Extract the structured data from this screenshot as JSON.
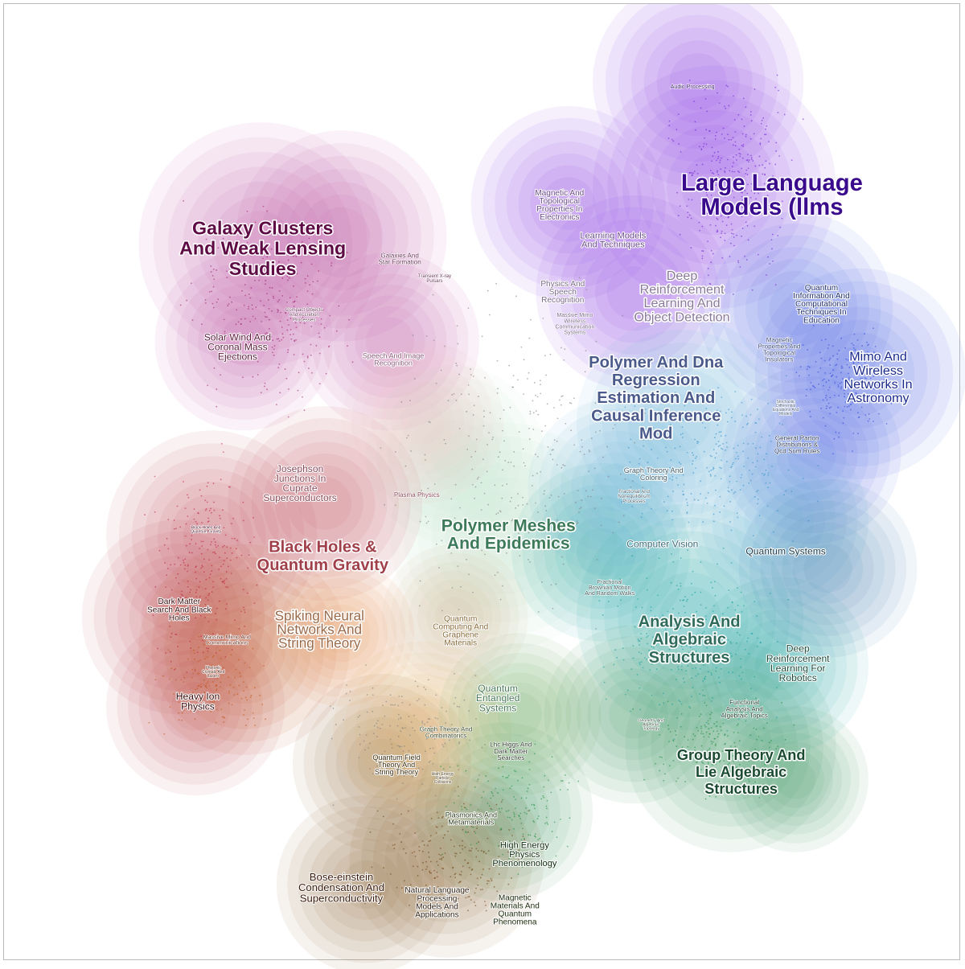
{
  "clusters": [
    {
      "name": "Galaxy Clusters And Weak Lensing Studies",
      "color": "#c0358c",
      "ink": "#5e0b45"
    },
    {
      "name": "Large Language Models (llms",
      "color": "#8a3be0",
      "ink": "#3a0a8c"
    },
    {
      "name": "Mimo And Wireless Networks In Astronomy",
      "color": "#3f5ee8",
      "ink": "#1a2a8c"
    },
    {
      "name": "Polymer Meshes And Epidemics",
      "color": "#7fb6a0",
      "ink": "#3c7a5a"
    },
    {
      "name": "Black Holes & Quantum Gravity",
      "color": "#d84a5a",
      "ink": "#a0404a"
    },
    {
      "name": "Analysis And Algebraic Structures",
      "color": "#1ea08a",
      "ink": "#2f6a5a"
    },
    {
      "name": "Group Theory And Lie Algebraic Structures",
      "color": "#2f9a60",
      "ink": "#1a4a30"
    },
    {
      "name": "Bose-einstein Condensation And Superconductivity",
      "color": "#8a5a2a",
      "ink": "#3a1a0a"
    },
    {
      "name": "Polymer And Dna Regression Estimation And Causal Inference Mod",
      "color": "#5aa8d8",
      "ink": "#4a5a8a"
    }
  ],
  "labels": [
    {
      "text": "Galaxy Clusters And Weak Lensing Studies",
      "lines": [
        "Galaxy Clusters",
        "And Weak Lensing",
        "Studies"
      ],
      "size": "large",
      "color": "#5e0b45"
    },
    {
      "text": "Large Language Models (llms",
      "lines": [
        "Large Language",
        "Models (llms"
      ],
      "size": "xlarge",
      "color": "#3a0a8c"
    },
    {
      "text": "Audio Processing",
      "lines": [
        "Audio Processing"
      ],
      "size": "tiny",
      "color": "#3a1a6a"
    },
    {
      "text": "Magnetic And Topological Properties In Electronics",
      "lines": [
        "Magnetic And",
        "Topological",
        "Properties In",
        "Electronics"
      ],
      "size": "small",
      "color": "#6a4a8a"
    },
    {
      "text": "Learning Models And Techniques",
      "lines": [
        "Learning Models",
        "And Techniques"
      ],
      "size": "small",
      "color": "#6a4a8a"
    },
    {
      "text": "Physics And Speech Recognition",
      "lines": [
        "Physics And",
        "Speech",
        "Recognition"
      ],
      "size": "small",
      "color": "#7a6a8a"
    },
    {
      "text": "Massive Mimo Wireless Communication Systems",
      "lines": [
        "Massive Mimo",
        "Wireless",
        "Communication",
        "Systems"
      ],
      "size": "tiny",
      "color": "#7a6a8a"
    },
    {
      "text": "Deep Reinforcement Learning And Object Detection",
      "lines": [
        "Deep",
        "Reinforcement",
        "Learning And",
        "Object Detection"
      ],
      "size": "medium",
      "color": "#8a7a9a"
    },
    {
      "text": "Quantum Information And Computational Techniques In Education",
      "lines": [
        "Quantum",
        "Information And",
        "Computational",
        "Techniques In",
        "Education"
      ],
      "size": "small",
      "color": "#1a2a6a"
    },
    {
      "text": "Mimo And Wireless Networks In Astronomy",
      "lines": [
        "Mimo And",
        "Wireless",
        "Networks In",
        "Astronomy"
      ],
      "size": "medium-bold",
      "color": "#1a2a8c"
    },
    {
      "text": "Magnetic Properties And Topological Insulators",
      "lines": [
        "Magnetic",
        "Properties And",
        "Topological",
        "Insulators"
      ],
      "size": "tiny",
      "color": "#3a4a7a"
    },
    {
      "text": "Polymer And Dna Regression Estimation And Causal Inference Mod",
      "lines": [
        "Polymer And Dna",
        "Regression",
        "Estimation And",
        "Causal Inference",
        "Mod"
      ],
      "size": "large",
      "color": "#4a5a8a"
    },
    {
      "text": "Stochastic Differential Equations And Models",
      "lines": [
        "Stochastic",
        "Differential",
        "Equations And",
        "Models"
      ],
      "size": "micro",
      "color": "#4a5a7a"
    },
    {
      "text": "General Parton Distributions & Qcd Sum Rules",
      "lines": [
        "General Parton",
        "Distributions &",
        "Qcd Sum Rules"
      ],
      "size": "tiny",
      "color": "#2a3a5a"
    },
    {
      "text": "Galaxies And Star Formation",
      "lines": [
        "Galaxies And",
        "Star Formation"
      ],
      "size": "tiny",
      "color": "#6a3a5a"
    },
    {
      "text": "Transient X-ray Pulsars",
      "lines": [
        "Transient X-ray",
        "Pulsars"
      ],
      "size": "micro",
      "color": "#6a3a5a"
    },
    {
      "text": "Compact Objects And Accretion Processes",
      "lines": [
        "Compact Objects",
        "And Accretion",
        "Processes"
      ],
      "size": "micro",
      "color": "#6a3a5a"
    },
    {
      "text": "Solar Wind And Coronal Mass Ejections",
      "lines": [
        "Solar Wind And",
        "Coronal Mass",
        "Ejections"
      ],
      "size": "small",
      "color": "#5a1a3a"
    },
    {
      "text": "Speech And Image Recognition",
      "lines": [
        "Speech And Image",
        "Recognition"
      ],
      "size": "tiny",
      "color": "#8a5a7a"
    },
    {
      "text": "Josephson Junctions In Cuprate Superconductors",
      "lines": [
        "Josephson",
        "Junctions In",
        "Cuprate",
        "Superconductors"
      ],
      "size": "small",
      "color": "#8a4a5a"
    },
    {
      "text": "Plasma Physics",
      "lines": [
        "Plasma Physics"
      ],
      "size": "tiny",
      "color": "#8a4a5a"
    },
    {
      "text": "Black Holes And Quantum Gravity",
      "lines": [
        "Black Holes And",
        "Quantum Gravity"
      ],
      "size": "micro",
      "color": "#4a0a1a"
    },
    {
      "text": "Black Holes & Quantum Gravity",
      "lines": [
        "Black Holes &",
        "Quantum Gravity"
      ],
      "size": "large",
      "color": "#a0404a"
    },
    {
      "text": "Polymer Meshes And Epidemics",
      "lines": [
        "Polymer Meshes",
        "And Epidemics"
      ],
      "size": "large",
      "color": "#3c7a5a"
    },
    {
      "text": "Dark Matter Search And Black Holes",
      "lines": [
        "Dark Matter",
        "Search And Black",
        "Holes"
      ],
      "size": "tiny",
      "color": "#3a0a0a"
    },
    {
      "text": "Massive Mimo And Communications",
      "lines": [
        "Massive Mimo And",
        "Communications"
      ],
      "size": "micro",
      "color": "#6a2a1a"
    },
    {
      "text": "Photonic Crystals And Lasers",
      "lines": [
        "Photonic",
        "Crystals And",
        "Lasers"
      ],
      "size": "micro",
      "color": "#4a1a0a"
    },
    {
      "text": "Heavy Ion Physics",
      "lines": [
        "Heavy Ion",
        "Physics"
      ],
      "size": "small",
      "color": "#3a0a0a"
    },
    {
      "text": "Spiking Neural Networks And String Theory",
      "lines": [
        "Spiking Neural",
        "Networks And",
        "String Theory"
      ],
      "size": "medium",
      "color": "#9a6a4a"
    },
    {
      "text": "Quantum Computing And Graphene Materials",
      "lines": [
        "Quantum",
        "Computing And",
        "Graphene",
        "Materials"
      ],
      "size": "small",
      "color": "#8a6a3a"
    },
    {
      "text": "Graph Theory And Coloring",
      "lines": [
        "Graph Theory And",
        "Coloring"
      ],
      "size": "tiny",
      "color": "#3a5a6a"
    },
    {
      "text": "Fractional And Nonequilibrium Processes",
      "lines": [
        "Fractional And",
        "Nonequilibrium",
        "Processes"
      ],
      "size": "micro",
      "color": "#3a5a6a"
    },
    {
      "text": "Computer Vision",
      "lines": [
        "Computer Vision"
      ],
      "size": "small",
      "color": "#3a6a7a"
    },
    {
      "text": "Quantum Systems",
      "lines": [
        "Quantum Systems"
      ],
      "size": "small",
      "color": "#1a3a4a"
    },
    {
      "text": "Fractional Brownian Motion And Random Walks",
      "lines": [
        "Fractional",
        "Brownian Motion",
        "And Random Walks"
      ],
      "size": "micro",
      "color": "#3a5a5a"
    },
    {
      "text": "Analysis And Algebraic Structures",
      "lines": [
        "Analysis And",
        "Algebraic",
        "Structures"
      ],
      "size": "medium-bold",
      "color": "#2f6a5a"
    },
    {
      "text": "Deep Reinforcement Learning For Robotics",
      "lines": [
        "Deep",
        "Reinforcement",
        "Learning For",
        "Robotics"
      ],
      "size": "small",
      "color": "#1a4a3a"
    },
    {
      "text": "Quantum Entangled Systems",
      "lines": [
        "Quantum",
        "Entangled",
        "Systems"
      ],
      "size": "small",
      "color": "#4a7a5a"
    },
    {
      "text": "Graph Theory And Combinatorics",
      "lines": [
        "Graph Theory And",
        "Combinatorics"
      ],
      "size": "micro",
      "color": "#3a4a2a"
    },
    {
      "text": "Functional Analysis And Algebraic Topics",
      "lines": [
        "Functional",
        "Analysis And",
        "Algebraic Topics"
      ],
      "size": "tiny",
      "color": "#1a3a2a"
    },
    {
      "text": "Geometry And Algebraic Topology",
      "lines": [
        "Geometry And",
        "Algebraic",
        "Topology"
      ],
      "size": "micro",
      "color": "#2a4a3a"
    },
    {
      "text": "Quantum Field Theory And String Theory",
      "lines": [
        "Quantum Field",
        "Theory And",
        "String Theory"
      ],
      "size": "tiny",
      "color": "#3a2a0a"
    },
    {
      "text": "High Energy Particle Collisions",
      "lines": [
        "High Energy",
        "Particle",
        "Collisions"
      ],
      "size": "micro",
      "color": "#4a3a1a"
    },
    {
      "text": "Lhc Higgs And Dark Matter Searches",
      "lines": [
        "Lhc Higgs And",
        "Dark Matter",
        "Searches"
      ],
      "size": "micro",
      "color": "#2a3a2a"
    },
    {
      "text": "Group Theory And Lie Algebraic Structures",
      "lines": [
        "Group Theory And",
        "Lie Algebraic",
        "Structures"
      ],
      "size": "medium-bold",
      "color": "#1a4a30"
    },
    {
      "text": "Plasmonics And Metamaterials",
      "lines": [
        "Plasmonics And",
        "Metamaterials"
      ],
      "size": "tiny",
      "color": "#2a3a1a"
    },
    {
      "text": "High Energy Physics Phenomenology",
      "lines": [
        "High Energy",
        "Physics",
        "Phenomenology"
      ],
      "size": "small",
      "color": "#0a2a0a"
    },
    {
      "text": "Bose-einstein Condensation And Superconductivity",
      "lines": [
        "Bose-einstein",
        "Condensation And",
        "Superconductivity"
      ],
      "size": "small",
      "color": "#3a1a0a"
    },
    {
      "text": "Natural Language Processing Models And Applications",
      "lines": [
        "Natural Language",
        "Processing",
        "Models And",
        "Applications"
      ],
      "size": "tiny",
      "color": "#2a1a0a"
    },
    {
      "text": "Magnetic Materials And Quantum Phenomena",
      "lines": [
        "Magnetic",
        "Materials And",
        "Quantum",
        "Phenomena"
      ],
      "size": "tiny",
      "color": "#1a2a0a"
    }
  ]
}
